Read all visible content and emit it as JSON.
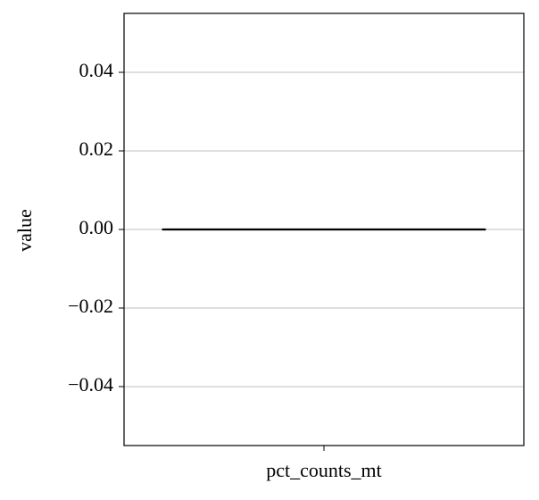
{
  "chart_data": {
    "type": "violin",
    "categories": [
      "pct_counts_mt"
    ],
    "values": [
      0
    ],
    "color": "#000000",
    "ylabel": "value",
    "ylim": [
      -0.055,
      0.055
    ],
    "yticks": [
      {
        "value": -0.04,
        "label": "−0.04"
      },
      {
        "value": -0.02,
        "label": "−0.02"
      },
      {
        "value": 0,
        "label": "0.00"
      },
      0.02,
      0.04
    ],
    "grid": true
  }
}
